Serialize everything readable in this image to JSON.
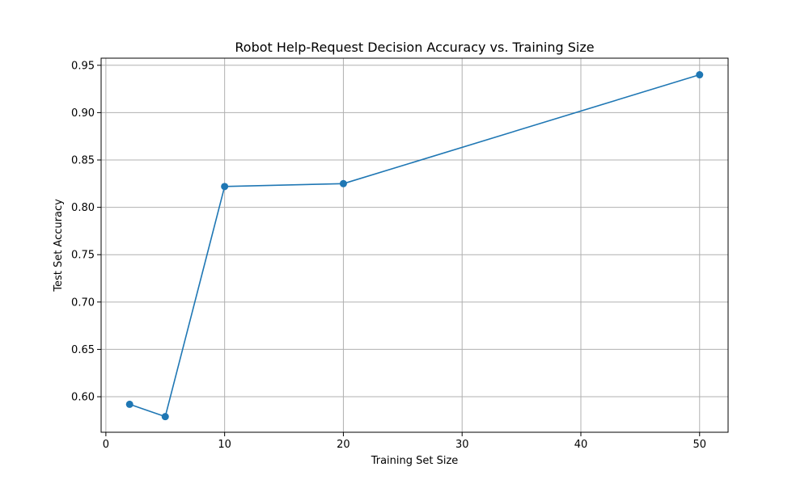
{
  "chart_data": {
    "type": "line",
    "title": "Robot Help-Request Decision Accuracy vs. Training Size",
    "xlabel": "Training Set Size",
    "ylabel": "Test Set Accuracy",
    "xlim": [
      -0.4,
      52.4
    ],
    "ylim": [
      0.5625,
      0.9575
    ],
    "x_ticks": [
      0,
      10,
      20,
      30,
      40,
      50
    ],
    "x_tick_labels": [
      "0",
      "10",
      "20",
      "30",
      "40",
      "50"
    ],
    "y_ticks": [
      0.6,
      0.65,
      0.7,
      0.75,
      0.8,
      0.85,
      0.9,
      0.95
    ],
    "y_tick_labels": [
      "0.60",
      "0.65",
      "0.70",
      "0.75",
      "0.80",
      "0.85",
      "0.90",
      "0.95"
    ],
    "grid": true,
    "legend": false,
    "series": [
      {
        "color": "#1f77b4",
        "marker": "circle",
        "x": [
          2,
          5,
          10,
          20,
          50
        ],
        "y": [
          0.592,
          0.579,
          0.822,
          0.825,
          0.94
        ]
      }
    ]
  }
}
